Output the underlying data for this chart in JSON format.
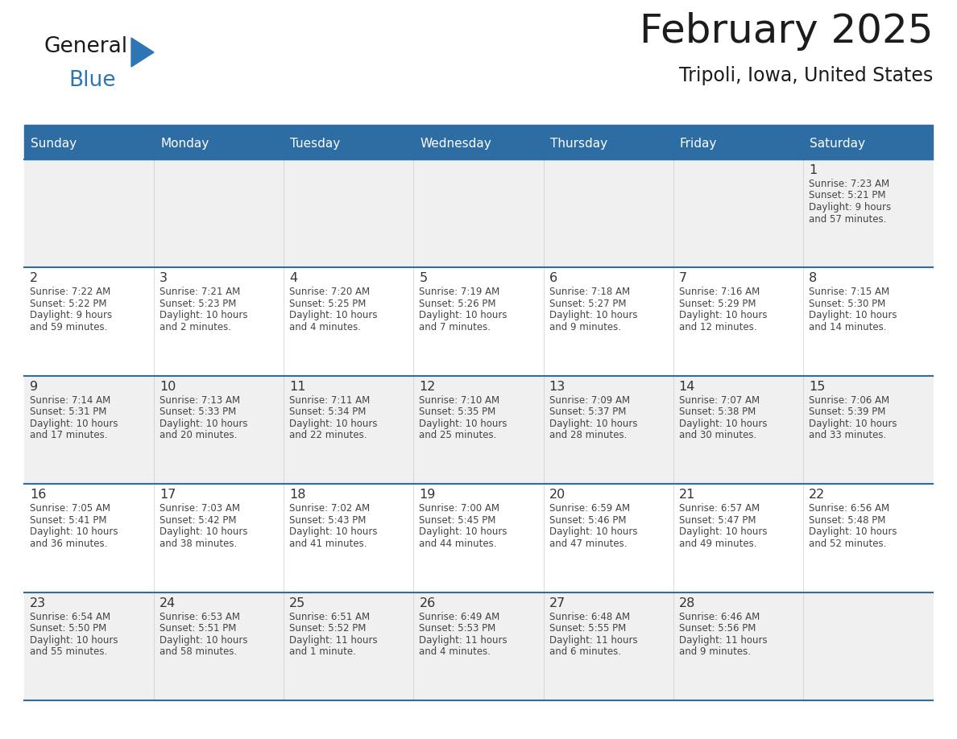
{
  "title": "February 2025",
  "subtitle": "Tripoli, Iowa, United States",
  "days_of_week": [
    "Sunday",
    "Monday",
    "Tuesday",
    "Wednesday",
    "Thursday",
    "Friday",
    "Saturday"
  ],
  "header_bg": "#2E6DA4",
  "header_text": "#FFFFFF",
  "cell_bg_odd": "#F0F0F0",
  "cell_bg_even": "#FFFFFF",
  "border_color": "#2E6DA4",
  "day_num_color": "#333333",
  "text_color": "#444444",
  "logo_general_color": "#1a1a1a",
  "logo_blue_color": "#2E75B6",
  "calendar_data": [
    [
      null,
      null,
      null,
      null,
      null,
      null,
      {
        "day": 1,
        "sunrise": "7:23 AM",
        "sunset": "5:21 PM",
        "daylight": "9 hours and 57 minutes."
      }
    ],
    [
      {
        "day": 2,
        "sunrise": "7:22 AM",
        "sunset": "5:22 PM",
        "daylight": "9 hours and 59 minutes."
      },
      {
        "day": 3,
        "sunrise": "7:21 AM",
        "sunset": "5:23 PM",
        "daylight": "10 hours and 2 minutes."
      },
      {
        "day": 4,
        "sunrise": "7:20 AM",
        "sunset": "5:25 PM",
        "daylight": "10 hours and 4 minutes."
      },
      {
        "day": 5,
        "sunrise": "7:19 AM",
        "sunset": "5:26 PM",
        "daylight": "10 hours and 7 minutes."
      },
      {
        "day": 6,
        "sunrise": "7:18 AM",
        "sunset": "5:27 PM",
        "daylight": "10 hours and 9 minutes."
      },
      {
        "day": 7,
        "sunrise": "7:16 AM",
        "sunset": "5:29 PM",
        "daylight": "10 hours and 12 minutes."
      },
      {
        "day": 8,
        "sunrise": "7:15 AM",
        "sunset": "5:30 PM",
        "daylight": "10 hours and 14 minutes."
      }
    ],
    [
      {
        "day": 9,
        "sunrise": "7:14 AM",
        "sunset": "5:31 PM",
        "daylight": "10 hours and 17 minutes."
      },
      {
        "day": 10,
        "sunrise": "7:13 AM",
        "sunset": "5:33 PM",
        "daylight": "10 hours and 20 minutes."
      },
      {
        "day": 11,
        "sunrise": "7:11 AM",
        "sunset": "5:34 PM",
        "daylight": "10 hours and 22 minutes."
      },
      {
        "day": 12,
        "sunrise": "7:10 AM",
        "sunset": "5:35 PM",
        "daylight": "10 hours and 25 minutes."
      },
      {
        "day": 13,
        "sunrise": "7:09 AM",
        "sunset": "5:37 PM",
        "daylight": "10 hours and 28 minutes."
      },
      {
        "day": 14,
        "sunrise": "7:07 AM",
        "sunset": "5:38 PM",
        "daylight": "10 hours and 30 minutes."
      },
      {
        "day": 15,
        "sunrise": "7:06 AM",
        "sunset": "5:39 PM",
        "daylight": "10 hours and 33 minutes."
      }
    ],
    [
      {
        "day": 16,
        "sunrise": "7:05 AM",
        "sunset": "5:41 PM",
        "daylight": "10 hours and 36 minutes."
      },
      {
        "day": 17,
        "sunrise": "7:03 AM",
        "sunset": "5:42 PM",
        "daylight": "10 hours and 38 minutes."
      },
      {
        "day": 18,
        "sunrise": "7:02 AM",
        "sunset": "5:43 PM",
        "daylight": "10 hours and 41 minutes."
      },
      {
        "day": 19,
        "sunrise": "7:00 AM",
        "sunset": "5:45 PM",
        "daylight": "10 hours and 44 minutes."
      },
      {
        "day": 20,
        "sunrise": "6:59 AM",
        "sunset": "5:46 PM",
        "daylight": "10 hours and 47 minutes."
      },
      {
        "day": 21,
        "sunrise": "6:57 AM",
        "sunset": "5:47 PM",
        "daylight": "10 hours and 49 minutes."
      },
      {
        "day": 22,
        "sunrise": "6:56 AM",
        "sunset": "5:48 PM",
        "daylight": "10 hours and 52 minutes."
      }
    ],
    [
      {
        "day": 23,
        "sunrise": "6:54 AM",
        "sunset": "5:50 PM",
        "daylight": "10 hours and 55 minutes."
      },
      {
        "day": 24,
        "sunrise": "6:53 AM",
        "sunset": "5:51 PM",
        "daylight": "10 hours and 58 minutes."
      },
      {
        "day": 25,
        "sunrise": "6:51 AM",
        "sunset": "5:52 PM",
        "daylight": "11 hours and 1 minute."
      },
      {
        "day": 26,
        "sunrise": "6:49 AM",
        "sunset": "5:53 PM",
        "daylight": "11 hours and 4 minutes."
      },
      {
        "day": 27,
        "sunrise": "6:48 AM",
        "sunset": "5:55 PM",
        "daylight": "11 hours and 6 minutes."
      },
      {
        "day": 28,
        "sunrise": "6:46 AM",
        "sunset": "5:56 PM",
        "daylight": "11 hours and 9 minutes."
      },
      null
    ]
  ]
}
